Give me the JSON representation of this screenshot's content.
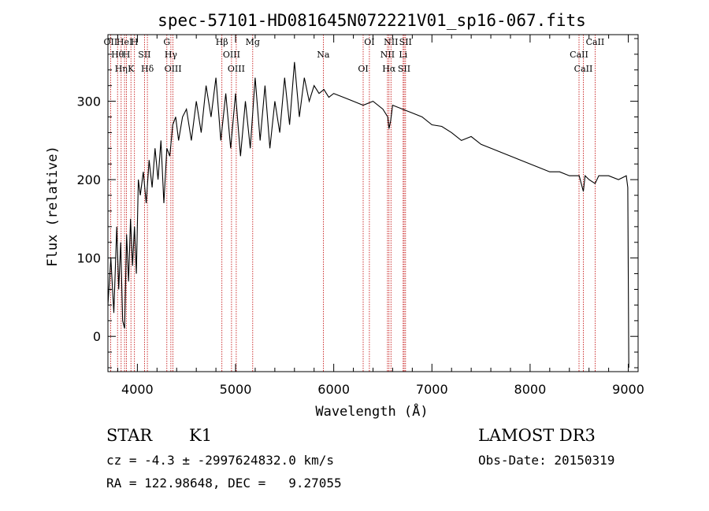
{
  "chart_data": {
    "type": "line",
    "title": "spec-57101-HD081645N072221V01_sp16-067.fits",
    "xlabel": "Wavelength (Å)",
    "ylabel": "Flux (relative)",
    "xlim": [
      3700,
      9100
    ],
    "ylim": [
      -45,
      385
    ],
    "xticks": [
      4000,
      5000,
      6000,
      7000,
      8000,
      9000
    ],
    "yticks": [
      0,
      100,
      200,
      300
    ],
    "grid": false,
    "series": [
      {
        "x": [
          3700,
          3730,
          3760,
          3790,
          3810,
          3830,
          3850,
          3870,
          3890,
          3910,
          3930,
          3950,
          3970,
          3990,
          4010,
          4030,
          4060,
          4090,
          4120,
          4150,
          4180,
          4210,
          4240,
          4270,
          4300,
          4330,
          4360,
          4390,
          4420,
          4460,
          4500,
          4550,
          4600,
          4650,
          4700,
          4750,
          4800,
          4850,
          4900,
          4950,
          5000,
          5050,
          5100,
          5150,
          5200,
          5250,
          5300,
          5350,
          5400,
          5450,
          5500,
          5550,
          5600,
          5650,
          5700,
          5750,
          5800,
          5850,
          5900,
          5950,
          6000,
          6100,
          6200,
          6300,
          6400,
          6500,
          6550,
          6563,
          6580,
          6600,
          6700,
          6800,
          6900,
          7000,
          7100,
          7200,
          7300,
          7400,
          7500,
          7600,
          7700,
          7800,
          7900,
          8000,
          8100,
          8200,
          8300,
          8400,
          8500,
          8542,
          8560,
          8600,
          8662,
          8700,
          8800,
          8900,
          8980,
          8995,
          9005
        ],
        "y": [
          40,
          100,
          30,
          140,
          60,
          120,
          20,
          10,
          130,
          70,
          150,
          90,
          140,
          80,
          200,
          180,
          210,
          170,
          225,
          190,
          240,
          200,
          250,
          170,
          240,
          230,
          270,
          280,
          250,
          280,
          290,
          250,
          300,
          260,
          320,
          280,
          330,
          250,
          310,
          240,
          310,
          230,
          300,
          240,
          330,
          250,
          320,
          240,
          300,
          260,
          330,
          270,
          350,
          280,
          330,
          300,
          320,
          310,
          315,
          305,
          310,
          305,
          300,
          295,
          300,
          290,
          280,
          265,
          275,
          295,
          290,
          285,
          280,
          270,
          268,
          260,
          250,
          255,
          245,
          240,
          235,
          230,
          225,
          220,
          215,
          210,
          210,
          205,
          205,
          185,
          205,
          200,
          195,
          205,
          205,
          200,
          205,
          190,
          -40
        ]
      }
    ],
    "lines": [
      {
        "x": 3727,
        "label": "OII"
      },
      {
        "x": 3798,
        "label": "Hθ"
      },
      {
        "x": 3835,
        "label": "Hη"
      },
      {
        "x": 3869,
        "label": "HeI"
      },
      {
        "x": 3889,
        "label": "H"
      },
      {
        "x": 3934,
        "label": "K"
      },
      {
        "x": 3970,
        "label": "H"
      },
      {
        "x": 4072,
        "label": "SII"
      },
      {
        "x": 4102,
        "label": "Hδ"
      },
      {
        "x": 4300,
        "label": "G"
      },
      {
        "x": 4341,
        "label": "Hγ"
      },
      {
        "x": 4363,
        "label": "OIII"
      },
      {
        "x": 4861,
        "label": "Hβ"
      },
      {
        "x": 4959,
        "label": "OIII"
      },
      {
        "x": 5007,
        "label": "OIII"
      },
      {
        "x": 5175,
        "label": "Mg"
      },
      {
        "x": 5894,
        "label": "Na"
      },
      {
        "x": 6300,
        "label": "OI"
      },
      {
        "x": 6363,
        "label": "OI"
      },
      {
        "x": 6548,
        "label": "NII"
      },
      {
        "x": 6563,
        "label": "Hα"
      },
      {
        "x": 6583,
        "label": "NII"
      },
      {
        "x": 6707,
        "label": "Li"
      },
      {
        "x": 6717,
        "label": "SII"
      },
      {
        "x": 6731,
        "label": "SII"
      },
      {
        "x": 8498,
        "label": "CaII"
      },
      {
        "x": 8542,
        "label": "CaII"
      },
      {
        "x": 8662,
        "label": "CaII"
      }
    ]
  },
  "footer": {
    "class_label": "STAR",
    "subclass_label": "K1",
    "survey_label": "LAMOST DR3",
    "cz_text": "cz = -4.3 ± -2997624832.0 km/s",
    "obs_date_text": "Obs-Date: 20150319",
    "radec_text": "RA = 122.98648, DEC =   9.27055"
  },
  "colors": {
    "spectrum": "#000000",
    "line_markers": "#c00000",
    "axes": "#000000",
    "background": "#ffffff"
  }
}
